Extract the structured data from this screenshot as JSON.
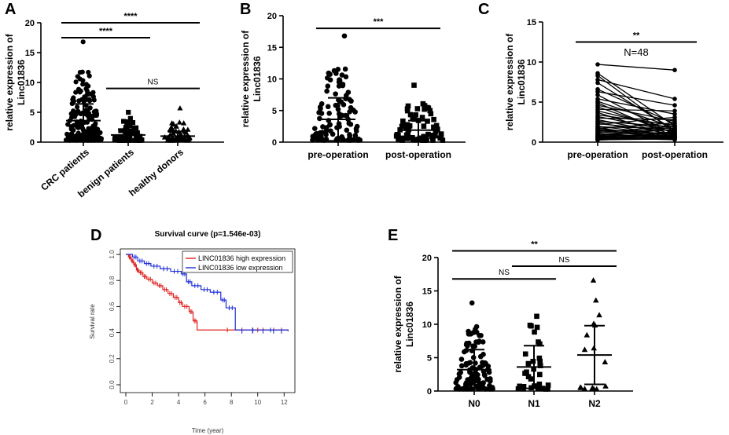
{
  "chart_data": [
    {
      "panel": "A",
      "type": "scatter",
      "ylabel": [
        "relative expression of",
        "Linc01836"
      ],
      "ylim": [
        0,
        20
      ],
      "yticks": [
        0,
        5,
        10,
        15,
        20
      ],
      "categories": [
        "CRC patients",
        "benign patients",
        "healthy donors"
      ],
      "markers": [
        "circle",
        "square",
        "triangle"
      ],
      "means": [
        3.6,
        1.2,
        1.0
      ],
      "sds": [
        2.8,
        0.9,
        0.8
      ],
      "max_values": [
        16.8,
        5.0,
        5.7
      ],
      "n_points": [
        170,
        60,
        60
      ],
      "significance": [
        {
          "from": 0,
          "to": 2,
          "label": "****",
          "y": 20
        },
        {
          "from": 0,
          "to": 1,
          "label": "****",
          "y": 17.5
        },
        {
          "from": 1,
          "to": 2,
          "label": "NS",
          "y": 9
        }
      ]
    },
    {
      "panel": "B",
      "type": "scatter",
      "ylabel": [
        "relative expression of",
        "Linc01836"
      ],
      "ylim": [
        0,
        20
      ],
      "yticks": [
        0,
        5,
        10,
        15,
        20
      ],
      "categories": [
        "pre-operation",
        "post-operation"
      ],
      "markers": [
        "circle",
        "square"
      ],
      "means": [
        3.6,
        1.9
      ],
      "sds": [
        3.4,
        1.5
      ],
      "max_values": [
        16.8,
        9.0
      ],
      "n_points": [
        110,
        80
      ],
      "significance": [
        {
          "from": 0,
          "to": 1,
          "label": "***",
          "y": 18
        }
      ]
    },
    {
      "panel": "C",
      "type": "line",
      "ylabel": [
        "relative expression of",
        "Linc01836"
      ],
      "ylim": [
        0,
        15
      ],
      "yticks": [
        0,
        5,
        10,
        15
      ],
      "categories": [
        "pre-operation",
        "post-operation"
      ],
      "annotation": "N=48",
      "significance": [
        {
          "from": 0,
          "to": 1,
          "label": "**",
          "y": 12.5
        }
      ],
      "pairs": [
        [
          9.7,
          9.0
        ],
        [
          8.6,
          2.0
        ],
        [
          8.3,
          1.2
        ],
        [
          7.8,
          5.4
        ],
        [
          7.4,
          1.5
        ],
        [
          6.6,
          2.3
        ],
        [
          6.3,
          4.6
        ],
        [
          5.9,
          0.9
        ],
        [
          5.4,
          3.5
        ],
        [
          5.1,
          1.8
        ],
        [
          4.9,
          0.7
        ],
        [
          4.6,
          2.6
        ],
        [
          4.4,
          1.1
        ],
        [
          4.1,
          3.9
        ],
        [
          3.9,
          1.6
        ],
        [
          3.7,
          0.6
        ],
        [
          3.4,
          2.1
        ],
        [
          3.2,
          1.3
        ],
        [
          3.0,
          2.8
        ],
        [
          2.8,
          0.9
        ],
        [
          2.6,
          1.9
        ],
        [
          2.5,
          0.5
        ],
        [
          2.3,
          1.4
        ],
        [
          2.2,
          3.1
        ],
        [
          2.0,
          0.8
        ],
        [
          1.9,
          1.7
        ],
        [
          1.8,
          0.4
        ],
        [
          1.7,
          2.4
        ],
        [
          1.6,
          1.0
        ],
        [
          1.5,
          0.6
        ],
        [
          1.4,
          1.5
        ],
        [
          1.3,
          0.7
        ],
        [
          1.2,
          2.0
        ],
        [
          1.1,
          0.5
        ],
        [
          1.0,
          1.2
        ],
        [
          0.9,
          0.8
        ],
        [
          0.85,
          1.6
        ],
        [
          0.8,
          0.4
        ],
        [
          0.7,
          1.1
        ],
        [
          0.65,
          0.6
        ],
        [
          0.6,
          0.9
        ],
        [
          0.55,
          0.3
        ],
        [
          0.5,
          0.7
        ],
        [
          0.45,
          1.3
        ],
        [
          0.4,
          0.5
        ],
        [
          0.35,
          0.8
        ],
        [
          0.3,
          0.4
        ],
        [
          0.25,
          0.6
        ]
      ]
    },
    {
      "panel": "D",
      "type": "line",
      "title": "Survival curve (p=1.546e-03)",
      "xlabel": "Time (year)",
      "ylabel": "Survival rate",
      "xlim": [
        0,
        12.4
      ],
      "ylim": [
        0,
        1.0
      ],
      "xticks": [
        0,
        2,
        4,
        6,
        8,
        10,
        12
      ],
      "yticks": [
        0.0,
        0.2,
        0.4,
        0.6,
        0.8,
        1.0
      ],
      "legend_position": "top-right",
      "series": [
        {
          "name": "LINC01836 high expression",
          "color": "#e0201e",
          "steps": [
            [
              0,
              1.0
            ],
            [
              0.2,
              0.98
            ],
            [
              0.4,
              0.95
            ],
            [
              0.6,
              0.92
            ],
            [
              0.8,
              0.88
            ],
            [
              1.0,
              0.86
            ],
            [
              1.3,
              0.83
            ],
            [
              1.6,
              0.81
            ],
            [
              2.0,
              0.78
            ],
            [
              2.4,
              0.76
            ],
            [
              2.8,
              0.73
            ],
            [
              3.2,
              0.7
            ],
            [
              3.6,
              0.67
            ],
            [
              4.0,
              0.63
            ],
            [
              4.3,
              0.6
            ],
            [
              4.8,
              0.56
            ],
            [
              5.1,
              0.49
            ],
            [
              5.4,
              0.42
            ],
            [
              12.3,
              0.42
            ]
          ]
        },
        {
          "name": "LINC01836 low expression",
          "color": "#1f2fd8",
          "steps": [
            [
              0,
              1.0
            ],
            [
              0.5,
              0.98
            ],
            [
              0.9,
              0.95
            ],
            [
              1.4,
              0.93
            ],
            [
              1.9,
              0.91
            ],
            [
              2.6,
              0.89
            ],
            [
              3.4,
              0.87
            ],
            [
              4.2,
              0.85
            ],
            [
              4.6,
              0.79
            ],
            [
              5.0,
              0.76
            ],
            [
              5.7,
              0.73
            ],
            [
              6.4,
              0.71
            ],
            [
              7.2,
              0.65
            ],
            [
              7.6,
              0.59
            ],
            [
              8.3,
              0.42
            ],
            [
              12.3,
              0.41
            ]
          ]
        }
      ]
    },
    {
      "panel": "E",
      "type": "scatter",
      "ylabel": [
        "relative expression of",
        "Linc01836"
      ],
      "ylim": [
        0,
        20
      ],
      "yticks": [
        0,
        5,
        10,
        15,
        20
      ],
      "categories": [
        "N0",
        "N1",
        "N2"
      ],
      "markers": [
        "circle",
        "square",
        "triangle"
      ],
      "means": [
        3.2,
        3.6,
        5.4
      ],
      "sds": [
        3.0,
        3.2,
        4.4
      ],
      "max_values": [
        13.2,
        11.2,
        16.6
      ],
      "n_points": [
        110,
        32,
        18
      ],
      "significance": [
        {
          "from": 0,
          "to": 2,
          "label": "**",
          "y": 21
        },
        {
          "from": 1,
          "to": 2,
          "label": "NS",
          "y": 18.7
        },
        {
          "from": 0,
          "to": 1,
          "label": "NS",
          "y": 16.8
        }
      ]
    }
  ],
  "panel_labels": {
    "A": "A",
    "B": "B",
    "C": "C",
    "D": "D",
    "E": "E"
  }
}
